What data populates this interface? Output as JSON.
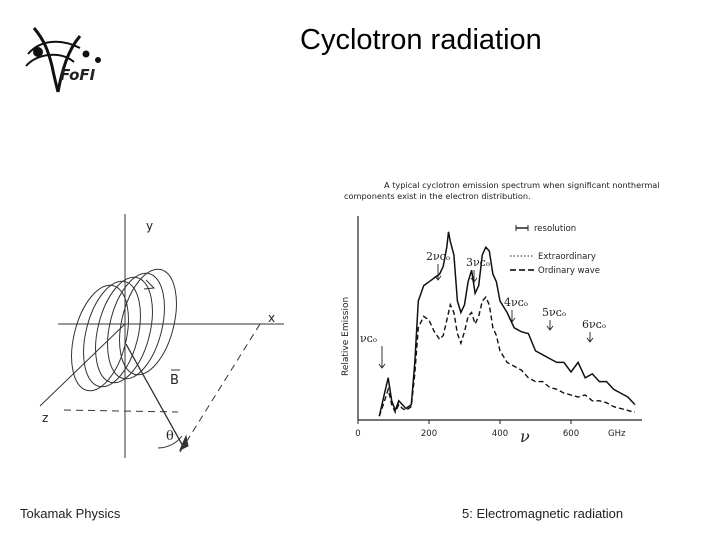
{
  "slide": {
    "title": "Cyclotron radiation",
    "footer_left": "Tokamak Physics",
    "footer_right": "5: Electromagnetic radiation"
  },
  "logo": {
    "text": "FoFI"
  },
  "geometry_figure": {
    "axis_x": "x",
    "axis_y": "y",
    "axis_z": "z",
    "vector_label": "B",
    "angle_label": "θ"
  },
  "spectrum_figure": {
    "caption_line1": "A typical cyclotron emission spectrum when significant nonthermal",
    "caption_line2": "components exist in the electron distribution.",
    "legend": {
      "resolution": "resolution",
      "extraordinary": "Extraordinary",
      "ordinary": "Ordinary wave"
    },
    "y_axis_label": "Relative Emission",
    "x_axis_label": "ν",
    "x_unit": "GHz",
    "harmonic_labels": [
      "νᴄₒ",
      "2νᴄₒ",
      "3νᴄₒ",
      "4νᴄₒ",
      "5νᴄₒ",
      "6νᴄₒ"
    ]
  },
  "chart_data": {
    "type": "line",
    "xlim": [
      0,
      800
    ],
    "x_ticks": [
      0,
      200,
      400,
      600
    ],
    "series": [
      {
        "name": "Extraordinary",
        "x": [
          60,
          75,
          85,
          95,
          105,
          115,
          125,
          135,
          150,
          160,
          170,
          185,
          200,
          215,
          230,
          240,
          250,
          255,
          260,
          270,
          280,
          290,
          300,
          310,
          320,
          330,
          340,
          350,
          360,
          370,
          380,
          390,
          400,
          420,
          440,
          460,
          480,
          500,
          520,
          540,
          560,
          580,
          600,
          620,
          640,
          660,
          680,
          700,
          720,
          740,
          760,
          780
        ],
        "y": [
          0.02,
          0.14,
          0.22,
          0.1,
          0.05,
          0.1,
          0.08,
          0.06,
          0.08,
          0.3,
          0.62,
          0.7,
          0.72,
          0.74,
          0.76,
          0.8,
          0.9,
          0.98,
          0.93,
          0.86,
          0.62,
          0.56,
          0.6,
          0.72,
          0.78,
          0.66,
          0.7,
          0.86,
          0.9,
          0.88,
          0.76,
          0.72,
          0.62,
          0.56,
          0.48,
          0.46,
          0.45,
          0.36,
          0.34,
          0.32,
          0.3,
          0.3,
          0.25,
          0.3,
          0.22,
          0.24,
          0.2,
          0.2,
          0.16,
          0.14,
          0.12,
          0.08
        ]
      },
      {
        "name": "Ordinary wave",
        "x": [
          60,
          75,
          85,
          95,
          105,
          115,
          125,
          135,
          150,
          160,
          170,
          185,
          200,
          215,
          230,
          240,
          250,
          260,
          270,
          280,
          290,
          300,
          310,
          320,
          330,
          340,
          350,
          360,
          370,
          380,
          390,
          400,
          420,
          440,
          460,
          480,
          500,
          520,
          540,
          560,
          580,
          600,
          620,
          640,
          660,
          680,
          700,
          720,
          740,
          760,
          780
        ],
        "y": [
          0.02,
          0.1,
          0.16,
          0.08,
          0.04,
          0.08,
          0.06,
          0.05,
          0.07,
          0.24,
          0.48,
          0.54,
          0.52,
          0.46,
          0.42,
          0.44,
          0.52,
          0.6,
          0.56,
          0.45,
          0.4,
          0.46,
          0.54,
          0.56,
          0.5,
          0.54,
          0.62,
          0.64,
          0.6,
          0.48,
          0.44,
          0.36,
          0.3,
          0.28,
          0.26,
          0.22,
          0.2,
          0.2,
          0.17,
          0.16,
          0.14,
          0.13,
          0.12,
          0.13,
          0.1,
          0.1,
          0.09,
          0.07,
          0.06,
          0.05,
          0.04
        ]
      }
    ]
  }
}
